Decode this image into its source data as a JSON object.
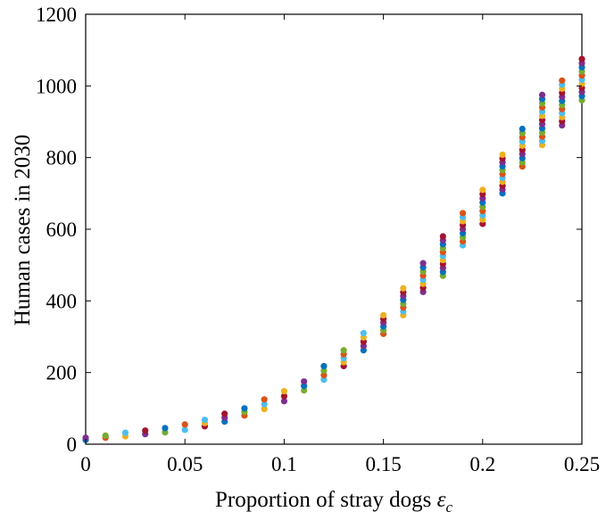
{
  "chart_data": {
    "type": "scatter",
    "xlabel": "Proportion of stray dogs ",
    "xlabel_symbol": "ε",
    "xlabel_subscript": "c",
    "ylabel": "Human cases in 2030",
    "xlim": [
      0,
      0.25
    ],
    "ylim": [
      0,
      1200
    ],
    "xticks": [
      "0",
      "0.05",
      "0.1",
      "0.15",
      "0.2",
      "0.25"
    ],
    "yticks": [
      "0",
      "200",
      "400",
      "600",
      "800",
      "1000",
      "1200"
    ],
    "grid": false,
    "legend": "none",
    "colors": [
      "#0072BD",
      "#D95319",
      "#EDB120",
      "#7E2F8E",
      "#77AC30",
      "#4DBEEE",
      "#A2142F"
    ],
    "x": [
      0,
      0.01,
      0.02,
      0.03,
      0.04,
      0.05,
      0.06,
      0.07,
      0.08,
      0.09,
      0.1,
      0.11,
      0.12,
      0.13,
      0.14,
      0.15,
      0.16,
      0.17,
      0.18,
      0.19,
      0.2,
      0.21,
      0.22,
      0.23,
      0.24,
      0.25
    ],
    "y_min": [
      12,
      18,
      22,
      28,
      33,
      40,
      50,
      63,
      80,
      98,
      120,
      150,
      180,
      218,
      262,
      308,
      360,
      425,
      470,
      555,
      615,
      700,
      775,
      835,
      890,
      960
    ],
    "y_max": [
      18,
      24,
      32,
      38,
      45,
      55,
      68,
      85,
      100,
      125,
      148,
      175,
      218,
      262,
      310,
      360,
      435,
      505,
      580,
      645,
      710,
      808,
      880,
      975,
      1015,
      1075
    ]
  }
}
